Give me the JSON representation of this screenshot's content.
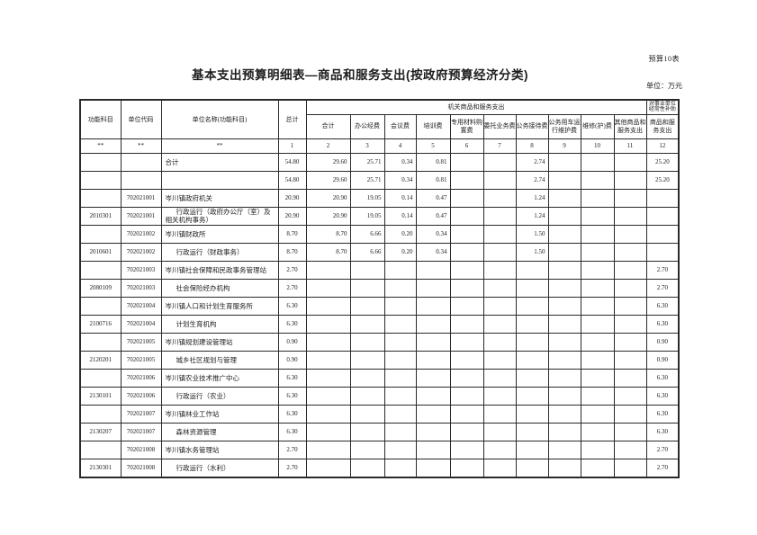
{
  "page": {
    "sheet_label": "预算10表",
    "title": "基本支出预算明细表—商品和服务支出(按政府预算经济分类)",
    "unit_note": "单位：万元"
  },
  "table": {
    "header": {
      "function_subject": "功能科目",
      "unit_code": "单位代码",
      "unit_name": "单位名称(功能科目)",
      "grand_total": "总计",
      "agency_group": "机关商品和服务支出",
      "subsidy_group": "对事业单位经常性补助",
      "sub_columns": [
        "合计",
        "办公经费",
        "会议费",
        "培训费",
        "专用材料购置费",
        "委托业务费",
        "公务接待费",
        "公务用车运行维护费",
        "维修(护)费",
        "其他商品和服务支出",
        "商品和服务支出"
      ],
      "number_row": [
        "**",
        "**",
        "**",
        "1",
        "2",
        "3",
        "4",
        "5",
        "6",
        "7",
        "8",
        "9",
        "10",
        "11",
        "12"
      ]
    },
    "rows": [
      {
        "func_code": "",
        "unit_code": "",
        "name": "合计",
        "indent": false,
        "values": [
          "54.80",
          "29.60",
          "25.71",
          "0.34",
          "0.81",
          "",
          "",
          "2.74",
          "",
          "",
          "",
          "25.20"
        ]
      },
      {
        "func_code": "",
        "unit_code": "",
        "name": "",
        "indent": false,
        "values": [
          "54.80",
          "29.60",
          "25.71",
          "0.34",
          "0.81",
          "",
          "",
          "2.74",
          "",
          "",
          "",
          "25.20"
        ]
      },
      {
        "func_code": "",
        "unit_code": "702021001",
        "name": "岑川镇政府机关",
        "indent": false,
        "values": [
          "20.90",
          "20.90",
          "19.05",
          "0.14",
          "0.47",
          "",
          "",
          "1.24",
          "",
          "",
          "",
          ""
        ]
      },
      {
        "func_code": "2010301",
        "unit_code": "702021001",
        "name": "行政运行（政府办公厅（室）及相关机构事务）",
        "indent": true,
        "values": [
          "20.90",
          "20.90",
          "19.05",
          "0.14",
          "0.47",
          "",
          "",
          "1.24",
          "",
          "",
          "",
          ""
        ]
      },
      {
        "func_code": "",
        "unit_code": "702021002",
        "name": "岑川镇财政所",
        "indent": false,
        "values": [
          "8.70",
          "8.70",
          "6.66",
          "0.20",
          "0.34",
          "",
          "",
          "1.50",
          "",
          "",
          "",
          ""
        ]
      },
      {
        "func_code": "2010601",
        "unit_code": "702021002",
        "name": "行政运行（财政事务）",
        "indent": true,
        "values": [
          "8.70",
          "8.70",
          "6.66",
          "0.20",
          "0.34",
          "",
          "",
          "1.50",
          "",
          "",
          "",
          ""
        ]
      },
      {
        "func_code": "",
        "unit_code": "702021003",
        "name": "岑川镇社会保障和民政事务管理站",
        "indent": false,
        "values": [
          "2.70",
          "",
          "",
          "",
          "",
          "",
          "",
          "",
          "",
          "",
          "",
          "2.70"
        ]
      },
      {
        "func_code": "2080109",
        "unit_code": "702021003",
        "name": "社会保险经办机构",
        "indent": true,
        "values": [
          "2.70",
          "",
          "",
          "",
          "",
          "",
          "",
          "",
          "",
          "",
          "",
          "2.70"
        ]
      },
      {
        "func_code": "",
        "unit_code": "702021004",
        "name": "岑川镇人口和计划生育服务所",
        "indent": false,
        "values": [
          "6.30",
          "",
          "",
          "",
          "",
          "",
          "",
          "",
          "",
          "",
          "",
          "6.30"
        ]
      },
      {
        "func_code": "2100716",
        "unit_code": "702021004",
        "name": "计划生育机构",
        "indent": true,
        "values": [
          "6.30",
          "",
          "",
          "",
          "",
          "",
          "",
          "",
          "",
          "",
          "",
          "6.30"
        ]
      },
      {
        "func_code": "",
        "unit_code": "702021005",
        "name": "岑川镇规划建设管理站",
        "indent": false,
        "values": [
          "0.90",
          "",
          "",
          "",
          "",
          "",
          "",
          "",
          "",
          "",
          "",
          "0.90"
        ]
      },
      {
        "func_code": "2120201",
        "unit_code": "702021005",
        "name": "城乡社区规划与管理",
        "indent": true,
        "values": [
          "0.90",
          "",
          "",
          "",
          "",
          "",
          "",
          "",
          "",
          "",
          "",
          "0.90"
        ]
      },
      {
        "func_code": "",
        "unit_code": "702021006",
        "name": "岑川镇农业技术推广中心",
        "indent": false,
        "values": [
          "6.30",
          "",
          "",
          "",
          "",
          "",
          "",
          "",
          "",
          "",
          "",
          "6.30"
        ]
      },
      {
        "func_code": "2130101",
        "unit_code": "702021006",
        "name": "行政运行（农业）",
        "indent": true,
        "values": [
          "6.30",
          "",
          "",
          "",
          "",
          "",
          "",
          "",
          "",
          "",
          "",
          "6.30"
        ]
      },
      {
        "func_code": "",
        "unit_code": "702021007",
        "name": "岑川镇林业工作站",
        "indent": false,
        "values": [
          "6.30",
          "",
          "",
          "",
          "",
          "",
          "",
          "",
          "",
          "",
          "",
          "6.30"
        ]
      },
      {
        "func_code": "2130207",
        "unit_code": "702021007",
        "name": "森林资源管理",
        "indent": true,
        "values": [
          "6.30",
          "",
          "",
          "",
          "",
          "",
          "",
          "",
          "",
          "",
          "",
          "6.30"
        ]
      },
      {
        "func_code": "",
        "unit_code": "702021008",
        "name": "岑川镇水务管理站",
        "indent": false,
        "values": [
          "2.70",
          "",
          "",
          "",
          "",
          "",
          "",
          "",
          "",
          "",
          "",
          "2.70"
        ]
      },
      {
        "func_code": "2130301",
        "unit_code": "702021008",
        "name": "行政运行（水利）",
        "indent": true,
        "values": [
          "2.70",
          "",
          "",
          "",
          "",
          "",
          "",
          "",
          "",
          "",
          "",
          "2.70"
        ]
      }
    ]
  }
}
